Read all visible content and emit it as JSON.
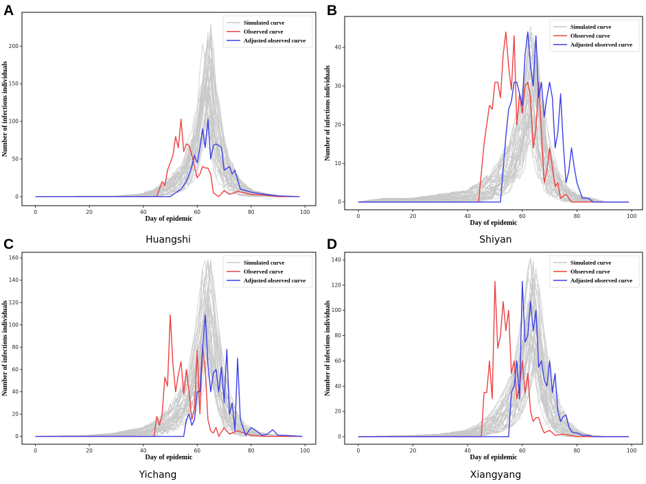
{
  "chart_data": [
    {
      "panel": "A",
      "city": "Huangshi",
      "type": "line",
      "xlabel": "Day of epidemic",
      "ylabel": "Number of infections individuals",
      "xlim": [
        -5,
        104
      ],
      "ylim": [
        -12,
        245
      ],
      "xticks": [
        0,
        20,
        40,
        60,
        80,
        100
      ],
      "yticks": [
        0,
        50,
        100,
        150,
        200
      ],
      "legend": [
        "Simulated curve",
        "Observed curve",
        "Adjusted observed curve"
      ],
      "legend_position": "top-right",
      "simulated_envelope": {
        "x": [
          0,
          30,
          40,
          45,
          50,
          55,
          58,
          60,
          62,
          63,
          64,
          65,
          66,
          68,
          70,
          73,
          76,
          80,
          85,
          90,
          98
        ],
        "upper": [
          0,
          1,
          4,
          12,
          25,
          45,
          80,
          110,
          160,
          200,
          232,
          190,
          150,
          100,
          60,
          35,
          18,
          8,
          4,
          1,
          0
        ],
        "lower": [
          0,
          0,
          0,
          0,
          2,
          8,
          20,
          35,
          60,
          75,
          95,
          70,
          50,
          25,
          12,
          5,
          2,
          0,
          0,
          0,
          0
        ]
      },
      "observed": {
        "x": [
          0,
          45,
          47,
          48,
          49,
          50,
          51,
          52,
          53,
          54,
          55,
          56,
          57,
          58,
          59,
          60,
          61,
          62,
          63,
          64,
          65,
          66,
          68,
          70,
          72,
          75,
          80,
          85,
          90,
          98
        ],
        "y": [
          0,
          0,
          20,
          15,
          35,
          45,
          55,
          80,
          65,
          103,
          60,
          70,
          68,
          55,
          40,
          25,
          30,
          40,
          38,
          38,
          30,
          5,
          0,
          8,
          3,
          7,
          3,
          2,
          0,
          0
        ]
      },
      "adjusted": {
        "x": [
          0,
          50,
          52,
          54,
          56,
          58,
          59,
          60,
          61,
          62,
          63,
          64,
          65,
          66,
          67,
          68,
          69,
          70,
          72,
          73,
          74,
          76,
          80,
          85,
          90,
          98
        ],
        "y": [
          0,
          0,
          5,
          10,
          20,
          40,
          55,
          45,
          65,
          90,
          65,
          103,
          50,
          68,
          70,
          68,
          65,
          35,
          40,
          30,
          35,
          10,
          6,
          3,
          1,
          0
        ]
      }
    },
    {
      "panel": "B",
      "city": "Shiyan",
      "type": "line",
      "xlabel": "Day of epidemic",
      "ylabel": "Number of infections individuals",
      "xlim": [
        -5,
        104
      ],
      "ylim": [
        -2,
        48
      ],
      "xticks": [
        0,
        20,
        40,
        60,
        80,
        100
      ],
      "yticks": [
        0,
        10,
        20,
        30,
        40
      ],
      "legend": [
        "Simulated curve",
        "Observed curve",
        "Adjusted observed curve"
      ],
      "legend_position": "top-right",
      "simulated_envelope": {
        "x": [
          0,
          10,
          20,
          30,
          40,
          45,
          50,
          55,
          58,
          60,
          62,
          63,
          64,
          65,
          66,
          68,
          70,
          73,
          76,
          80,
          85,
          90
        ],
        "upper": [
          0,
          1,
          1,
          2,
          3,
          5,
          8,
          14,
          20,
          26,
          36,
          42,
          46,
          40,
          32,
          22,
          14,
          8,
          4,
          2,
          1,
          0
        ],
        "lower": [
          0,
          0,
          0,
          0,
          0,
          0,
          1,
          3,
          6,
          9,
          14,
          16,
          18,
          13,
          9,
          5,
          2,
          1,
          0,
          0,
          0,
          0
        ]
      },
      "observed": {
        "x": [
          0,
          44,
          46,
          47,
          48,
          49,
          50,
          51,
          52,
          53,
          54,
          55,
          56,
          57,
          58,
          59,
          60,
          61,
          62,
          63,
          64,
          65,
          66,
          67,
          68,
          69,
          70,
          71,
          72,
          73,
          74,
          76,
          78,
          80,
          85,
          99
        ],
        "y": [
          0,
          0,
          15,
          20,
          25,
          24,
          31,
          31,
          27,
          38,
          44,
          35,
          29,
          43,
          20,
          28,
          23,
          30,
          31,
          27,
          14,
          19,
          31,
          18,
          5,
          8,
          14,
          9,
          4,
          5,
          1,
          2,
          0,
          0,
          0,
          0
        ]
      },
      "adjusted": {
        "x": [
          0,
          52,
          54,
          55,
          56,
          57,
          58,
          59,
          60,
          61,
          62,
          63,
          64,
          65,
          66,
          67,
          68,
          69,
          70,
          71,
          72,
          73,
          74,
          75,
          76,
          77,
          78,
          79,
          80,
          82,
          84,
          86,
          99
        ],
        "y": [
          0,
          0,
          17,
          24,
          26,
          31,
          31,
          28,
          25,
          38,
          44,
          35,
          30,
          43,
          27,
          31,
          22,
          27,
          31,
          27,
          14,
          18,
          28,
          15,
          5,
          8,
          14,
          9,
          5,
          1,
          1,
          0,
          0
        ]
      }
    },
    {
      "panel": "C",
      "city": "Yichang",
      "type": "line",
      "xlabel": "Day of epidemic",
      "ylabel": "Number of infections individuals",
      "xlim": [
        -5,
        104
      ],
      "ylim": [
        -7,
        165
      ],
      "xticks": [
        0,
        20,
        40,
        60,
        80,
        100
      ],
      "yticks": [
        0,
        20,
        40,
        60,
        80,
        100,
        120,
        140,
        160
      ],
      "legend": [
        "Simulated curve",
        "Observed curve",
        "Adjusted observed curve"
      ],
      "legend_position": "top-right",
      "simulated_envelope": {
        "x": [
          0,
          20,
          30,
          40,
          45,
          50,
          55,
          58,
          60,
          62,
          63,
          64,
          65,
          66,
          68,
          70,
          73,
          76,
          80,
          85,
          90,
          96
        ],
        "upper": [
          0,
          1,
          3,
          8,
          14,
          25,
          45,
          65,
          90,
          130,
          150,
          160,
          135,
          110,
          75,
          45,
          25,
          12,
          5,
          2,
          1,
          0
        ],
        "lower": [
          0,
          0,
          0,
          0,
          1,
          3,
          10,
          18,
          28,
          45,
          55,
          60,
          45,
          30,
          15,
          6,
          2,
          0,
          0,
          0,
          0,
          0
        ]
      },
      "observed": {
        "x": [
          0,
          44,
          45,
          46,
          47,
          48,
          49,
          50,
          51,
          52,
          53,
          54,
          55,
          56,
          57,
          58,
          59,
          60,
          61,
          62,
          63,
          64,
          65,
          66,
          67,
          68,
          70,
          72,
          75,
          80,
          85,
          99
        ],
        "y": [
          0,
          0,
          18,
          10,
          20,
          53,
          45,
          109,
          65,
          40,
          55,
          67,
          38,
          60,
          40,
          15,
          25,
          77,
          20,
          80,
          60,
          15,
          5,
          3,
          8,
          0,
          8,
          2,
          5,
          1,
          0,
          0
        ]
      },
      "adjusted": {
        "x": [
          0,
          55,
          56,
          57,
          58,
          59,
          60,
          61,
          62,
          63,
          64,
          65,
          66,
          67,
          68,
          69,
          70,
          71,
          72,
          73,
          74,
          75,
          76,
          78,
          80,
          82,
          84,
          86,
          88,
          90,
          92,
          99
        ],
        "y": [
          0,
          0,
          15,
          20,
          10,
          15,
          40,
          40,
          80,
          109,
          65,
          40,
          57,
          60,
          40,
          62,
          30,
          78,
          20,
          30,
          5,
          70,
          15,
          1,
          8,
          5,
          1,
          2,
          6,
          1,
          1,
          0
        ]
      }
    },
    {
      "panel": "D",
      "city": "Xiangyang",
      "type": "line",
      "xlabel": "Day of epidemic",
      "ylabel": "Number of infections individuals",
      "xlim": [
        -5,
        104
      ],
      "ylim": [
        -6,
        146
      ],
      "xticks": [
        0,
        20,
        40,
        60,
        80,
        100
      ],
      "yticks": [
        0,
        20,
        40,
        60,
        80,
        100,
        120,
        140
      ],
      "legend": [
        "Simulated curve",
        "Observed curve",
        "Adjusted observed curve"
      ],
      "legend_position": "top-right",
      "simulated_envelope": {
        "x": [
          0,
          20,
          30,
          40,
          45,
          50,
          55,
          58,
          60,
          62,
          63,
          64,
          65,
          66,
          68,
          70,
          73,
          76,
          80,
          85,
          90
        ],
        "upper": [
          0,
          1,
          2,
          5,
          10,
          20,
          40,
          60,
          85,
          115,
          132,
          142,
          120,
          100,
          70,
          45,
          25,
          12,
          4,
          1,
          0
        ],
        "lower": [
          0,
          0,
          0,
          0,
          1,
          3,
          8,
          15,
          25,
          40,
          48,
          55,
          45,
          30,
          15,
          6,
          2,
          0,
          0,
          0,
          0
        ]
      },
      "observed": {
        "x": [
          0,
          45,
          46,
          47,
          48,
          49,
          50,
          51,
          52,
          53,
          54,
          55,
          56,
          57,
          58,
          59,
          60,
          61,
          62,
          63,
          64,
          65,
          66,
          67,
          68,
          70,
          72,
          75,
          80,
          85,
          99
        ],
        "y": [
          0,
          0,
          35,
          35,
          60,
          30,
          123,
          70,
          80,
          107,
          84,
          100,
          50,
          60,
          30,
          40,
          60,
          35,
          50,
          20,
          12,
          15,
          15,
          8,
          3,
          5,
          1,
          2,
          0,
          0,
          0
        ]
      },
      "adjusted": {
        "x": [
          0,
          55,
          56,
          57,
          58,
          59,
          60,
          61,
          62,
          63,
          64,
          65,
          66,
          67,
          68,
          69,
          70,
          71,
          72,
          73,
          74,
          75,
          76,
          77,
          78,
          79,
          80,
          82,
          84,
          86,
          99
        ],
        "y": [
          0,
          0,
          35,
          40,
          60,
          30,
          123,
          75,
          80,
          107,
          84,
          100,
          55,
          60,
          45,
          40,
          60,
          35,
          50,
          20,
          12,
          16,
          17,
          8,
          4,
          3,
          3,
          1,
          1,
          0,
          0
        ]
      }
    }
  ]
}
